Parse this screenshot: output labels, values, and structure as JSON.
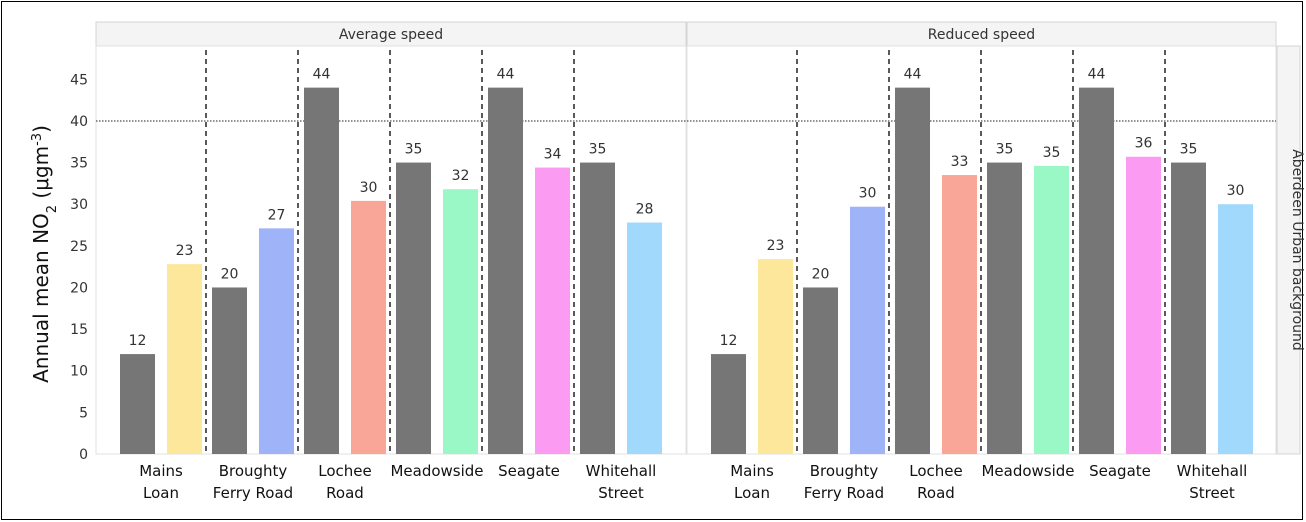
{
  "chart_data": {
    "type": "bar",
    "ylabel": {
      "main": "Annual mean NO",
      "sub": "2",
      "unit_open": " (μgm",
      "sup": "-3",
      "unit_close": ")"
    },
    "ylim": [
      0,
      49
    ],
    "yticks": [
      0,
      5,
      10,
      15,
      20,
      25,
      30,
      35,
      40,
      45
    ],
    "reference_line": 40,
    "right_strip_label": "Aberdeen Urban background",
    "grid": false,
    "categories": [
      {
        "lines": [
          "Mains",
          "Loan"
        ]
      },
      {
        "lines": [
          "Broughty",
          "Ferry Road"
        ]
      },
      {
        "lines": [
          "Lochee",
          "Road"
        ]
      },
      {
        "lines": [
          "Meadowside"
        ]
      },
      {
        "lines": [
          "Seagate"
        ]
      },
      {
        "lines": [
          "Whitehall",
          "Street"
        ]
      }
    ],
    "panels": [
      {
        "title": "Average speed",
        "baseline": [
          12,
          20,
          44,
          35,
          44,
          35
        ],
        "scenario": [
          22.8,
          27.1,
          30.4,
          31.8,
          34.4,
          27.8
        ],
        "baseline_labels": [
          "12",
          "20",
          "44",
          "35",
          "44",
          "35"
        ],
        "scenario_labels": [
          "23",
          "27",
          "30",
          "32",
          "34",
          "28"
        ]
      },
      {
        "title": "Reduced speed",
        "baseline": [
          12,
          20,
          44,
          35,
          44,
          35
        ],
        "scenario": [
          23.4,
          29.7,
          33.5,
          34.6,
          35.7,
          30.0
        ],
        "baseline_labels": [
          "12",
          "20",
          "44",
          "35",
          "44",
          "35"
        ],
        "scenario_labels": [
          "23",
          "30",
          "33",
          "35",
          "36",
          "30"
        ]
      }
    ],
    "colors": {
      "baseline": "#767676",
      "scenario": [
        "#fde79a",
        "#9fb4f8",
        "#f9a597",
        "#9af7c6",
        "#fb9bf2",
        "#a0d9fc"
      ],
      "strip_bg": "#f4f4f4",
      "strip_border": "#d4d4d4"
    }
  }
}
